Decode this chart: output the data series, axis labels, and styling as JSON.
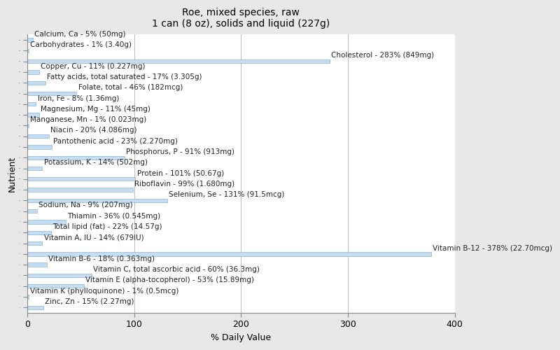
{
  "title": "Roe, mixed species, raw\n1 can (8 oz), solids and liquid (227g)",
  "xlabel": "% Daily Value",
  "ylabel": "Nutrient",
  "nutrients": [
    {
      "label": "Calcium, Ca - 5% (50mg)",
      "value": 5
    },
    {
      "label": "Carbohydrates - 1% (3.40g)",
      "value": 1
    },
    {
      "label": "Cholesterol - 283% (849mg)",
      "value": 283
    },
    {
      "label": "Copper, Cu - 11% (0.227mg)",
      "value": 11
    },
    {
      "label": "Fatty acids, total saturated - 17% (3.305g)",
      "value": 17
    },
    {
      "label": "Folate, total - 46% (182mcg)",
      "value": 46
    },
    {
      "label": "Iron, Fe - 8% (1.36mg)",
      "value": 8
    },
    {
      "label": "Magnesium, Mg - 11% (45mg)",
      "value": 11
    },
    {
      "label": "Manganese, Mn - 1% (0.023mg)",
      "value": 1
    },
    {
      "label": "Niacin - 20% (4.086mg)",
      "value": 20
    },
    {
      "label": "Pantothenic acid - 23% (2.270mg)",
      "value": 23
    },
    {
      "label": "Phosphorus, P - 91% (913mg)",
      "value": 91
    },
    {
      "label": "Potassium, K - 14% (502mg)",
      "value": 14
    },
    {
      "label": "Protein - 101% (50.67g)",
      "value": 101
    },
    {
      "label": "Riboflavin - 99% (1.680mg)",
      "value": 99
    },
    {
      "label": "Selenium, Se - 131% (91.5mcg)",
      "value": 131
    },
    {
      "label": "Sodium, Na - 9% (207mg)",
      "value": 9
    },
    {
      "label": "Thiamin - 36% (0.545mg)",
      "value": 36
    },
    {
      "label": "Total lipid (fat) - 22% (14.57g)",
      "value": 22
    },
    {
      "label": "Vitamin A, IU - 14% (679IU)",
      "value": 14
    },
    {
      "label": "Vitamin B-12 - 378% (22.70mcg)",
      "value": 378
    },
    {
      "label": "Vitamin B-6 - 18% (0.363mg)",
      "value": 18
    },
    {
      "label": "Vitamin C, total ascorbic acid - 60% (36.3mg)",
      "value": 60
    },
    {
      "label": "Vitamin E (alpha-tocopherol) - 53% (15.89mg)",
      "value": 53
    },
    {
      "label": "Vitamin K (phylloquinone) - 1% (0.5mcg)",
      "value": 1
    },
    {
      "label": "Zinc, Zn - 15% (2.27mg)",
      "value": 15
    }
  ],
  "bar_color": "#c6dcf0",
  "bar_edge_color": "#8ab4d4",
  "background_color": "#e8e8e8",
  "plot_bg_color": "#ffffff",
  "title_fontsize": 10,
  "label_fontsize": 7.5,
  "axis_label_fontsize": 9,
  "xlim": [
    0,
    400
  ],
  "xticks": [
    0,
    100,
    200,
    300,
    400
  ],
  "grid_color": "#bbbbbb",
  "bar_height": 0.35,
  "bar_spacing": 1.0,
  "text_color": "#222222"
}
